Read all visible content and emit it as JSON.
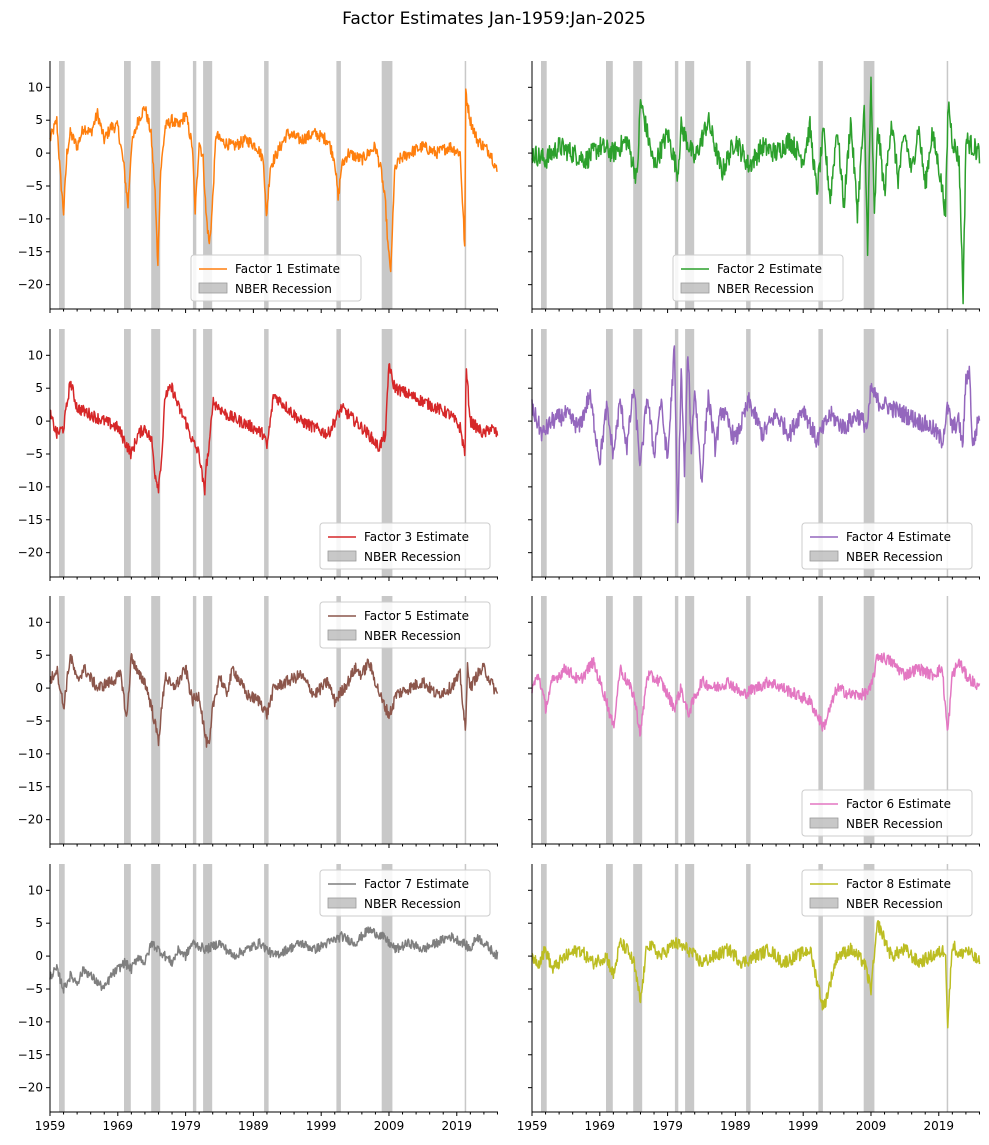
{
  "figure": {
    "title": "Factor Estimates Jan-1959:Jan-2025"
  },
  "colors": {
    "recession": "#b0b0b0",
    "axis": "#000000",
    "legend_border": "#cccccc"
  },
  "chart_data": {
    "type": "line",
    "title": "Factor Estimates Jan-1959:Jan-2025",
    "x_range": [
      1959.0,
      2025.08
    ],
    "ylim": [
      -23.7,
      14.0
    ],
    "y_ticks": [
      10,
      5,
      0,
      -5,
      -10,
      -15,
      -20
    ],
    "x_ticks": [
      1959,
      1969,
      1979,
      1989,
      1999,
      2009,
      2019
    ],
    "x_minor_tick_step": 2,
    "grid": false,
    "sharex": true,
    "sharey": true,
    "recession_label": "NBER Recession",
    "recessions": [
      [
        1960.33,
        1961.17
      ],
      [
        1969.92,
        1970.92
      ],
      [
        1973.92,
        1975.25
      ],
      [
        1980.08,
        1980.58
      ],
      [
        1981.58,
        1982.92
      ],
      [
        1990.58,
        1991.25
      ],
      [
        2001.25,
        2001.92
      ],
      [
        2007.92,
        2009.5
      ],
      [
        2020.17,
        2020.33
      ]
    ],
    "series": [
      {
        "name": "Factor 1 Estimate",
        "color": "#ff7f0e",
        "legend_loc": "lower center",
        "x": [
          1959.0,
          1960.0,
          1960.5,
          1961.0,
          1961.5,
          1962.0,
          1963.0,
          1964.0,
          1965.0,
          1966.0,
          1967.0,
          1968.0,
          1969.0,
          1969.9,
          1970.5,
          1971.0,
          1972.0,
          1973.0,
          1973.9,
          1974.5,
          1974.9,
          1975.3,
          1976.0,
          1977.0,
          1978.0,
          1979.0,
          1980.0,
          1980.4,
          1980.7,
          1981.0,
          1981.6,
          1982.0,
          1982.5,
          1982.9,
          1983.5,
          1984.0,
          1986.0,
          1988.0,
          1989.5,
          1990.5,
          1990.9,
          1991.5,
          1992.5,
          1994.0,
          1996.0,
          1998.0,
          2000.0,
          2001.0,
          2001.5,
          2002.0,
          2003.0,
          2005.0,
          2007.0,
          2007.9,
          2008.5,
          2008.9,
          2009.3,
          2009.8,
          2010.5,
          2012.0,
          2014.0,
          2016.0,
          2018.0,
          2019.5,
          2020.2,
          2020.3,
          2020.5,
          2021.0,
          2022.0,
          2023.0,
          2024.0,
          2025.0
        ],
        "values": [
          2,
          5,
          -3,
          -9,
          0,
          3,
          1,
          4,
          3,
          6,
          2,
          4,
          4,
          -2,
          -8,
          1,
          5,
          7,
          3,
          -6,
          -17,
          -3,
          4,
          5,
          4,
          6,
          1,
          -9,
          -4,
          2,
          -1,
          -9,
          -14,
          -9,
          3,
          2,
          1,
          2,
          1,
          -1,
          -10,
          -2,
          0,
          3,
          2,
          3,
          2,
          -1,
          -7,
          -2,
          0,
          -1,
          1,
          -3,
          -8,
          -15,
          -18,
          -3,
          -1,
          0,
          1,
          0,
          1,
          0,
          -15,
          10,
          8,
          5,
          2,
          1,
          0,
          -3
        ]
      },
      {
        "name": "Factor 2 Estimate",
        "color": "#2ca02c",
        "legend_loc": "lower center",
        "x": [
          1959.0,
          1961.0,
          1963.0,
          1965.0,
          1967.0,
          1969.0,
          1971.0,
          1973.0,
          1974.5,
          1975.0,
          1977.0,
          1979.0,
          1980.5,
          1981.0,
          1983.0,
          1985.0,
          1987.0,
          1989.0,
          1991.0,
          1993.0,
          1995.0,
          1997.0,
          1999.0,
          2000.0,
          2001.0,
          2002.0,
          2003.0,
          2004.0,
          2005.0,
          2006.0,
          2007.0,
          2008.0,
          2008.5,
          2009.0,
          2009.5,
          2010.0,
          2011.0,
          2012.0,
          2013.0,
          2014.0,
          2015.0,
          2016.0,
          2017.0,
          2018.0,
          2019.0,
          2020.0,
          2020.4,
          2021.0,
          2022.0,
          2022.6,
          2023.0,
          2024.0,
          2025.0
        ],
        "values": [
          0,
          -1,
          1,
          0,
          -1,
          1,
          0,
          2,
          -4,
          8,
          -2,
          3,
          -3,
          4,
          -1,
          5,
          -3,
          2,
          -2,
          1,
          0,
          2,
          -1,
          4,
          -6,
          3,
          -7,
          4,
          -8,
          5,
          -9,
          6,
          -14,
          11,
          -10,
          4,
          -6,
          5,
          -4,
          3,
          -3,
          4,
          -5,
          3,
          -2,
          -9,
          8,
          2,
          -1,
          -22,
          2,
          1,
          0
        ]
      },
      {
        "name": "Factor 3 Estimate",
        "color": "#d62728",
        "legend_loc": "lower right",
        "x": [
          1959.0,
          1960.0,
          1961.0,
          1962.0,
          1963.0,
          1965.0,
          1967.0,
          1969.0,
          1970.0,
          1971.0,
          1972.0,
          1973.0,
          1974.0,
          1974.5,
          1975.0,
          1975.5,
          1976.0,
          1977.0,
          1978.0,
          1979.0,
          1980.0,
          1981.0,
          1981.8,
          1982.0,
          1982.5,
          1983.0,
          1985.0,
          1987.0,
          1989.0,
          1990.5,
          1991.0,
          1992.0,
          1994.0,
          1996.0,
          1998.0,
          2000.0,
          2002.0,
          2004.0,
          2006.0,
          2007.5,
          2008.5,
          2009.0,
          2009.5,
          2010.0,
          2012.0,
          2014.0,
          2016.0,
          2018.0,
          2019.5,
          2020.2,
          2020.4,
          2021.0,
          2022.0,
          2023.0,
          2024.0,
          2025.0
        ],
        "values": [
          1,
          -2,
          -1,
          6,
          2,
          1,
          0,
          -1,
          -3,
          -5,
          -2,
          -1,
          -3,
          -8,
          -10,
          -5,
          4,
          5,
          2,
          0,
          -3,
          -5,
          -11,
          -7,
          -4,
          3,
          1,
          0,
          -1,
          -2,
          -4,
          4,
          2,
          0,
          -1,
          -2,
          2,
          0,
          -2,
          -4,
          -2,
          9,
          6,
          5,
          4,
          3,
          2,
          1,
          -1,
          -5,
          8,
          0,
          -1,
          -2,
          -1,
          -2
        ]
      },
      {
        "name": "Factor 4 Estimate",
        "color": "#9467bd",
        "legend_loc": "lower right",
        "x": [
          1959.0,
          1960.5,
          1962.0,
          1964.0,
          1966.0,
          1967.5,
          1969.0,
          1970.0,
          1971.0,
          1972.0,
          1973.0,
          1974.0,
          1975.0,
          1976.0,
          1977.0,
          1978.0,
          1979.0,
          1980.0,
          1980.5,
          1981.0,
          1981.5,
          1982.0,
          1982.5,
          1983.0,
          1984.0,
          1985.0,
          1986.0,
          1987.0,
          1989.0,
          1991.0,
          1993.0,
          1995.0,
          1997.0,
          1999.0,
          2001.0,
          2003.0,
          2005.0,
          2007.0,
          2008.5,
          2009.0,
          2010.0,
          2012.0,
          2014.0,
          2016.0,
          2018.0,
          2019.5,
          2020.3,
          2021.0,
          2022.0,
          2022.5,
          2023.0,
          2023.5,
          2024.0,
          2025.0
        ],
        "values": [
          2,
          -2,
          0,
          1,
          -1,
          4,
          -6,
          2,
          -5,
          3,
          -4,
          5,
          -7,
          4,
          -5,
          3,
          -6,
          11,
          -16,
          8,
          -8,
          11,
          -4,
          5,
          -9,
          4,
          -4,
          2,
          -3,
          3,
          -2,
          1,
          -2,
          2,
          -3,
          1,
          -1,
          1,
          -1,
          5,
          3,
          2,
          1,
          0,
          -1,
          -3,
          2,
          -1,
          0,
          -4,
          6,
          8,
          -4,
          1
        ]
      },
      {
        "name": "Factor 5 Estimate",
        "color": "#8c564b",
        "legend_loc": "upper right",
        "x": [
          1959.0,
          1960.0,
          1961.0,
          1962.0,
          1963.0,
          1964.0,
          1966.0,
          1968.0,
          1969.5,
          1970.3,
          1971.0,
          1972.0,
          1973.0,
          1974.0,
          1975.0,
          1976.0,
          1977.0,
          1978.0,
          1979.0,
          1980.0,
          1981.0,
          1982.0,
          1982.5,
          1983.0,
          1984.0,
          1985.0,
          1986.0,
          1987.0,
          1988.0,
          1990.0,
          1991.0,
          1992.0,
          1994.0,
          1996.0,
          1998.0,
          2000.0,
          2001.0,
          2003.0,
          2004.0,
          2005.0,
          2006.0,
          2007.0,
          2008.0,
          2009.0,
          2009.5,
          2010.0,
          2012.0,
          2014.0,
          2016.0,
          2018.0,
          2019.5,
          2020.3,
          2020.6,
          2021.0,
          2022.0,
          2023.0,
          2024.0,
          2025.0
        ],
        "values": [
          1,
          3,
          -3,
          5,
          1,
          3,
          0,
          1,
          2,
          -5,
          5,
          2,
          1,
          -3,
          -8,
          2,
          0,
          1,
          3,
          -2,
          -1,
          -8,
          -9,
          -3,
          2,
          -1,
          3,
          1,
          -1,
          -2,
          -4,
          0,
          1,
          2,
          -1,
          1,
          -2,
          1,
          3,
          2,
          4,
          1,
          -2,
          -4,
          -3,
          -1,
          0,
          1,
          -1,
          0,
          2,
          -7,
          4,
          0,
          2,
          3,
          1,
          -1
        ]
      },
      {
        "name": "Factor 6 Estimate",
        "color": "#e377c2",
        "legend_loc": "lower right",
        "x": [
          1959.0,
          1960.0,
          1961.0,
          1962.0,
          1964.0,
          1966.0,
          1968.0,
          1970.0,
          1971.0,
          1972.0,
          1974.0,
          1975.0,
          1976.0,
          1978.0,
          1980.0,
          1981.0,
          1982.0,
          1984.0,
          1986.0,
          1988.0,
          1990.0,
          1992.0,
          1994.0,
          1996.0,
          1998.0,
          2000.0,
          2001.0,
          2002.0,
          2003.0,
          2004.0,
          2006.0,
          2008.0,
          2009.0,
          2010.0,
          2012.0,
          2014.0,
          2016.0,
          2018.0,
          2019.5,
          2020.3,
          2021.0,
          2022.0,
          2023.0,
          2024.0,
          2025.0
        ],
        "values": [
          0,
          2,
          -3,
          1,
          3,
          1,
          4,
          -2,
          -6,
          3,
          -1,
          -7,
          2,
          1,
          -3,
          0,
          -4,
          1,
          0,
          1,
          -1,
          0,
          1,
          0,
          -1,
          -2,
          -4,
          -6,
          -3,
          0,
          -1,
          -1,
          0,
          5,
          4,
          2,
          3,
          2,
          3,
          -7,
          2,
          4,
          2,
          1,
          0
        ]
      },
      {
        "name": "Factor 7 Estimate",
        "color": "#7f7f7f",
        "legend_loc": "upper right",
        "x": [
          1959.0,
          1960.0,
          1961.0,
          1962.0,
          1963.0,
          1964.0,
          1965.0,
          1966.0,
          1967.0,
          1968.0,
          1969.0,
          1970.0,
          1971.0,
          1972.0,
          1973.0,
          1974.0,
          1975.0,
          1976.0,
          1977.0,
          1978.0,
          1979.0,
          1980.0,
          1982.0,
          1984.0,
          1986.0,
          1988.0,
          1990.0,
          1992.0,
          1994.0,
          1996.0,
          1998.0,
          2000.0,
          2002.0,
          2004.0,
          2006.0,
          2008.0,
          2010.0,
          2012.0,
          2014.0,
          2016.0,
          2018.0,
          2020.0,
          2021.0,
          2022.0,
          2023.0,
          2024.0,
          2025.0
        ],
        "values": [
          -3,
          -2,
          -5,
          -3,
          -4,
          -2,
          -3,
          -4,
          -5,
          -3,
          -2,
          -1,
          -2,
          0,
          -1,
          2,
          1,
          0,
          -1,
          1,
          0,
          2,
          1,
          2,
          0,
          1,
          2,
          0,
          1,
          2,
          1,
          2,
          3,
          2,
          4,
          3,
          1,
          2,
          1,
          2,
          3,
          2,
          1,
          3,
          2,
          1,
          0
        ]
      },
      {
        "name": "Factor 8 Estimate",
        "color": "#bcbd22",
        "legend_loc": "upper right",
        "x": [
          1959.0,
          1960.0,
          1961.0,
          1962.0,
          1964.0,
          1966.0,
          1968.0,
          1970.0,
          1971.0,
          1972.0,
          1973.0,
          1974.0,
          1975.0,
          1976.0,
          1978.0,
          1980.0,
          1982.0,
          1984.0,
          1986.0,
          1988.0,
          1990.0,
          1992.0,
          1994.0,
          1996.0,
          1998.0,
          2000.0,
          2002.0,
          2004.0,
          2006.0,
          2008.0,
          2009.0,
          2010.0,
          2012.0,
          2014.0,
          2016.0,
          2018.0,
          2020.0,
          2020.3,
          2021.0,
          2022.0,
          2023.0,
          2024.0,
          2025.0
        ],
        "values": [
          0,
          -1,
          1,
          -2,
          0,
          1,
          -1,
          0,
          -3,
          2,
          1,
          -1,
          -7,
          2,
          0,
          2,
          1,
          -1,
          0,
          1,
          -1,
          0,
          1,
          -1,
          0,
          1,
          -8,
          0,
          1,
          -1,
          -5,
          5,
          0,
          1,
          -1,
          0,
          1,
          -11,
          2,
          0,
          1,
          0,
          -1
        ]
      }
    ]
  }
}
